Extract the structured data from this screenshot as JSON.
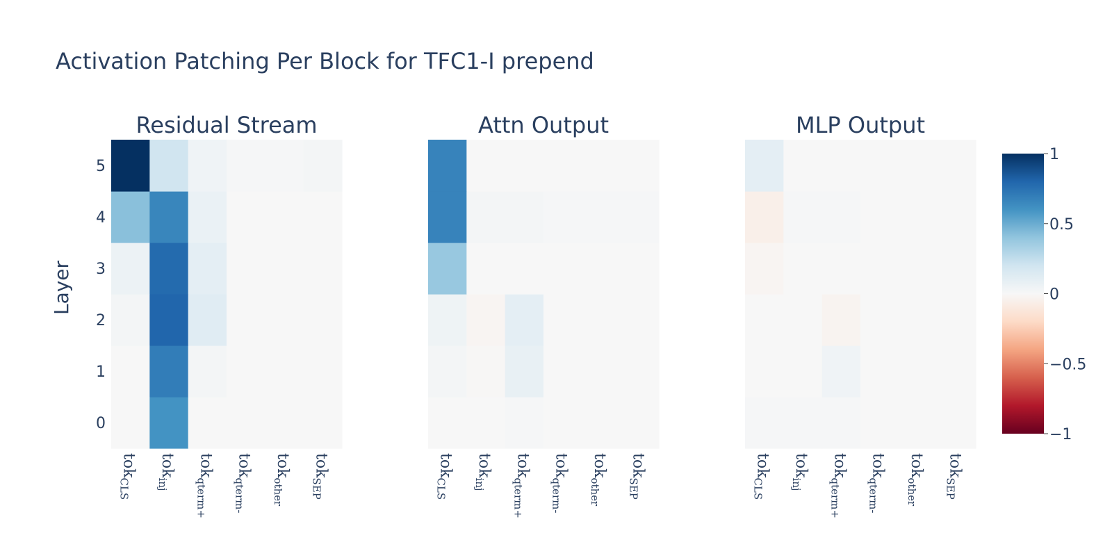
{
  "title": "Activation Patching Per Block for TFC1-I prepend",
  "chart_data": {
    "type": "heatmap",
    "ylabel": "Layer",
    "y_categories": [
      "0",
      "1",
      "2",
      "3",
      "4",
      "5"
    ],
    "x_categories": [
      {
        "base": "tok",
        "sub": "CLS"
      },
      {
        "base": "tok",
        "sub": "inj"
      },
      {
        "base": "tok",
        "sub": "qterm+"
      },
      {
        "base": "tok",
        "sub": "qterm-"
      },
      {
        "base": "tok",
        "sub": "other"
      },
      {
        "base": "tok",
        "sub": "SEP"
      }
    ],
    "zlim": [
      -1,
      1
    ],
    "colorscale": "RdBu",
    "colorbar_ticks": [
      "1",
      "0.5",
      "0",
      "−0.5",
      "−1"
    ],
    "colorbar_tick_values": [
      1,
      0.5,
      0,
      -0.5,
      -1
    ],
    "panels": [
      {
        "name": "Residual Stream",
        "z": [
          [
            0.0,
            0.6,
            0.0,
            0.0,
            0.0,
            0.0
          ],
          [
            0.0,
            0.7,
            0.02,
            0.0,
            0.0,
            0.0
          ],
          [
            0.02,
            0.8,
            0.12,
            0.0,
            0.0,
            0.0
          ],
          [
            0.06,
            0.78,
            0.1,
            0.0,
            0.0,
            0.0
          ],
          [
            0.42,
            0.66,
            0.07,
            0.0,
            0.0,
            0.0
          ],
          [
            1.0,
            0.2,
            0.04,
            0.01,
            0.01,
            0.02
          ]
        ]
      },
      {
        "name": "Attn Output",
        "z": [
          [
            0.0,
            0.0,
            0.01,
            0.0,
            0.0,
            0.0
          ],
          [
            0.02,
            -0.01,
            0.08,
            0.0,
            0.0,
            0.0
          ],
          [
            0.05,
            -0.02,
            0.1,
            0.0,
            0.0,
            0.0
          ],
          [
            0.38,
            0.0,
            0.0,
            0.0,
            0.0,
            0.0
          ],
          [
            0.67,
            0.02,
            0.02,
            0.01,
            0.01,
            0.01
          ],
          [
            0.67,
            0.0,
            0.0,
            0.0,
            0.0,
            0.0
          ]
        ]
      },
      {
        "name": "MLP Output",
        "z": [
          [
            0.01,
            0.01,
            0.01,
            0.0,
            0.0,
            0.0
          ],
          [
            0.0,
            0.0,
            0.04,
            0.0,
            0.0,
            0.0
          ],
          [
            0.0,
            0.0,
            -0.03,
            0.0,
            0.0,
            0.0
          ],
          [
            -0.02,
            0.0,
            0.0,
            0.0,
            0.0,
            0.0
          ],
          [
            -0.06,
            0.01,
            0.01,
            0.0,
            0.0,
            0.0
          ],
          [
            0.1,
            0.0,
            0.0,
            0.0,
            0.0,
            0.0
          ]
        ]
      }
    ]
  }
}
